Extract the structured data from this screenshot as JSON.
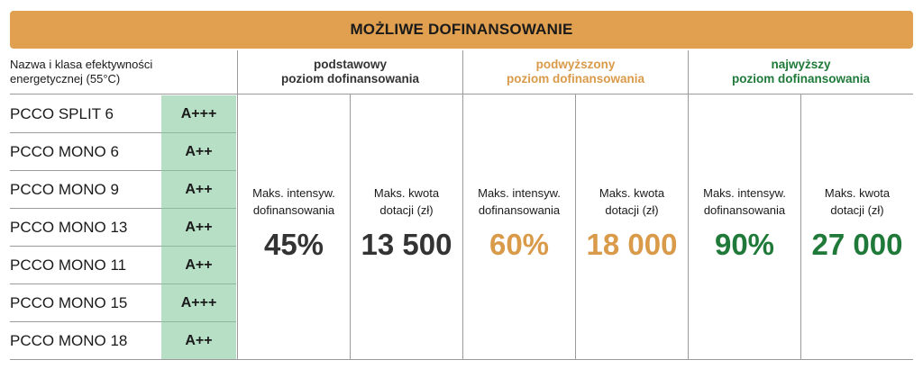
{
  "title": "MOŻLIWE DOFINANSOWANIE",
  "header_left": {
    "line1": "Nazwa i klasa efektywności",
    "line2": "energetycznej (55°C)"
  },
  "levels": [
    {
      "name": "podstawowy",
      "subtitle": "poziom dofinansowania",
      "color": "#333333"
    },
    {
      "name": "podwyższony",
      "subtitle": "poziom dofinansowania",
      "color": "#d99a49"
    },
    {
      "name": "najwyższy",
      "subtitle": "poziom dofinansowania",
      "color": "#1f7a3a"
    }
  ],
  "column_labels": {
    "intensity_line1": "Maks. intensyw.",
    "intensity_line2": "dofinansowania",
    "amount_line1": "Maks. kwota",
    "amount_line2": "dotacji (zł)"
  },
  "values": {
    "basic_intensity": "45%",
    "basic_amount": "13 500",
    "raised_intensity": "60%",
    "raised_amount": "18 000",
    "top_intensity": "90%",
    "top_amount": "27 000"
  },
  "models": [
    {
      "name": "PCCO SPLIT 6",
      "class": "A+++"
    },
    {
      "name": "PCCO MONO 6",
      "class": "A++"
    },
    {
      "name": "PCCO MONO 9",
      "class": "A++"
    },
    {
      "name": "PCCO MONO 13",
      "class": "A++"
    },
    {
      "name": "PCCO MONO 11",
      "class": "A++"
    },
    {
      "name": "PCCO MONO 15",
      "class": "A+++"
    },
    {
      "name": "PCCO MONO 18",
      "class": "A++"
    }
  ],
  "colors": {
    "banner": "#e0a050",
    "class_cell": "#b6dfc6"
  }
}
